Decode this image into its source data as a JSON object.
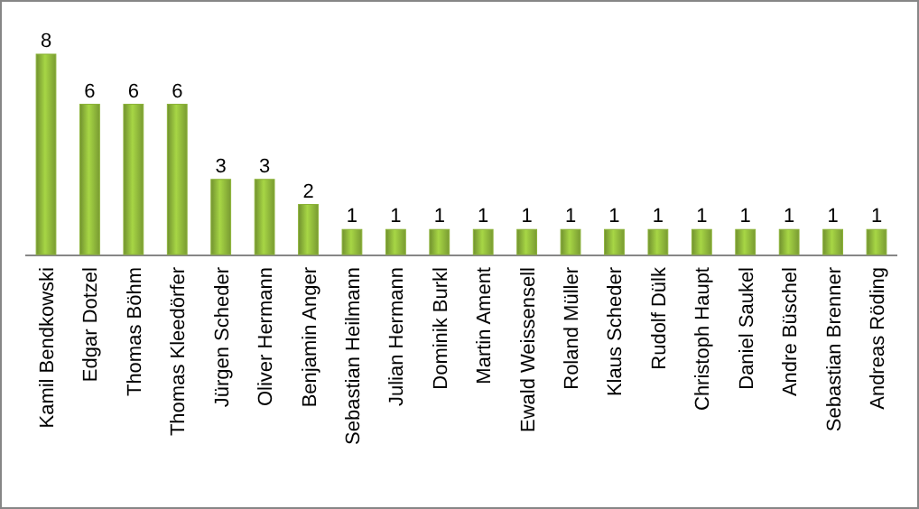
{
  "chart_data": {
    "type": "bar",
    "categories": [
      "Kamil Bendkowski",
      "Edgar Dotzel",
      "Thomas Böhm",
      "Thomas Kleedörfer",
      "Jürgen Scheder",
      "Oliver Hermann",
      "Benjamin Anger",
      "Sebastian Heilmann",
      "Julian Hermann",
      "Dominik Burkl",
      "Martin Ament",
      "Ewald Weissensell",
      "Roland Müller",
      "Klaus Scheder",
      "Rudolf Dülk",
      "Christoph Haupt",
      "Daniel Saukel",
      "Andre Büschel",
      "Sebastian Brenner",
      "Andreas Röding"
    ],
    "values": [
      8,
      6,
      6,
      6,
      3,
      3,
      2,
      1,
      1,
      1,
      1,
      1,
      1,
      1,
      1,
      1,
      1,
      1,
      1,
      1
    ],
    "color": "#8cb33a",
    "data_labels": true
  }
}
